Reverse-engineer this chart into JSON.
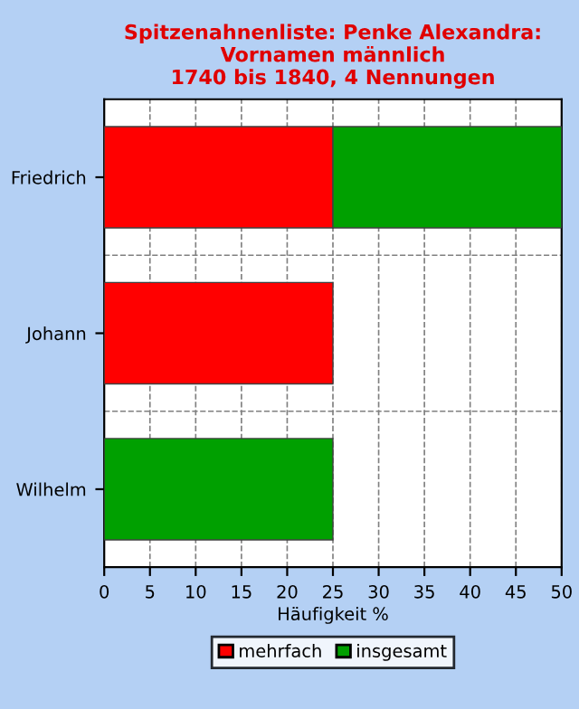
{
  "chart_data": {
    "type": "bar",
    "orientation": "horizontal",
    "stacked": true,
    "title": "Spitzenahnenliste: Penke Alexandra:\nVornamen männlich\n1740 bis 1840, 4 Nennungen",
    "xlabel": "Häufigkeit %",
    "categories": [
      "Friedrich",
      "Johann",
      "Wilhelm"
    ],
    "series": [
      {
        "name": "mehrfach",
        "color": "#ff0000",
        "values": [
          25,
          25,
          null
        ]
      },
      {
        "name": "insgesamt",
        "color": "#00a000",
        "values": [
          25,
          null,
          25
        ]
      }
    ],
    "xlim": [
      0,
      50
    ],
    "xticks": [
      0,
      5,
      10,
      15,
      20,
      25,
      30,
      35,
      40,
      45,
      50
    ],
    "grid": true,
    "legend": "bottom"
  }
}
